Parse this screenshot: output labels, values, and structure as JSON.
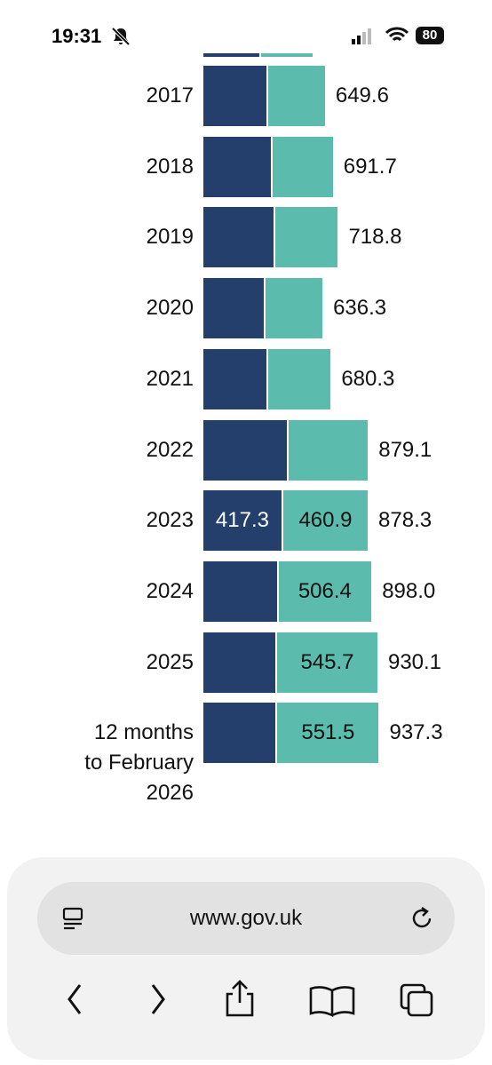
{
  "status_bar": {
    "time": "19:31",
    "battery": "80"
  },
  "chart_data": {
    "type": "bar",
    "orientation": "horizontal",
    "stacked": true,
    "categories": [
      "2017",
      "2018",
      "2019",
      "2020",
      "2021",
      "2022",
      "2023",
      "2024",
      "2025",
      "12 months to February 2026"
    ],
    "series": [
      {
        "color": "#243f6b",
        "values": [
          337,
          361,
          375,
          323,
          337,
          446,
          417.3,
          391.6,
          384.4,
          385.8
        ],
        "value_labels": [
          null,
          null,
          null,
          null,
          null,
          null,
          "417.3",
          null,
          null,
          null
        ]
      },
      {
        "color": "#5bbbad",
        "values": [
          312.6,
          330.7,
          343.8,
          313.3,
          343.3,
          433.1,
          460.9,
          506.4,
          545.7,
          551.5
        ],
        "value_labels": [
          null,
          null,
          null,
          null,
          null,
          null,
          "460.9",
          "506.4",
          "545.7",
          "551.5"
        ]
      }
    ],
    "totals": [
      "649.6",
      "691.7",
      "718.8",
      "636.3",
      "680.3",
      "879.1",
      "878.3",
      "898.0",
      "930.1",
      "937.3"
    ]
  },
  "browser": {
    "url": "www.gov.uk"
  }
}
